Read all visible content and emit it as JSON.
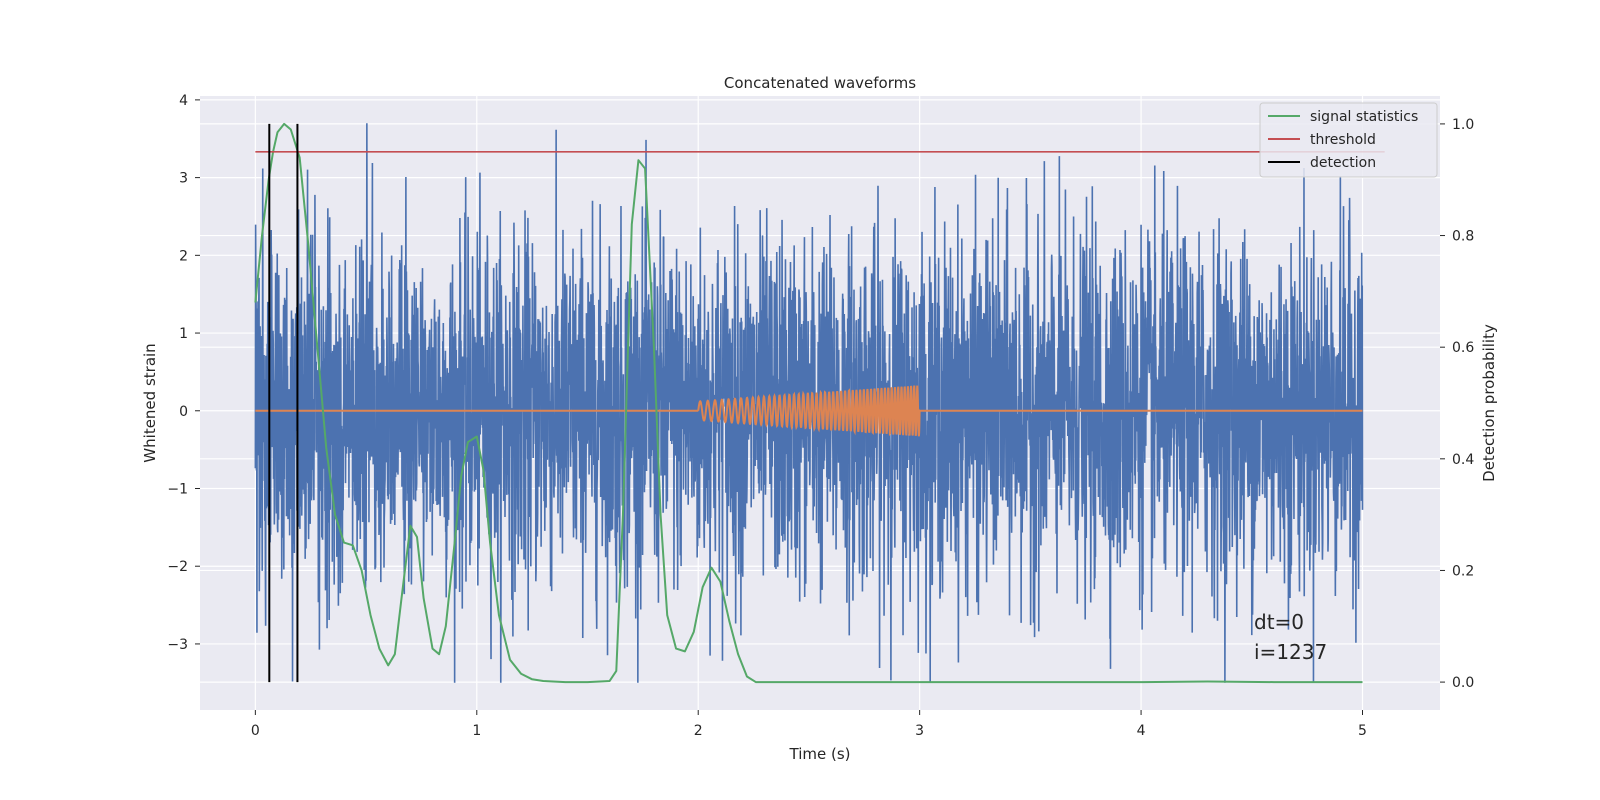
{
  "chart_data": {
    "type": "line",
    "title": "Concatenated waveforms",
    "xlabel": "Time (s)",
    "ylabel": "Whitened strain",
    "y2label": "Detection probability",
    "xlim": [
      -0.25,
      5.35
    ],
    "ylim": [
      -3.85,
      4.05
    ],
    "y2lim": [
      -0.05,
      1.05
    ],
    "xticks": [
      0,
      1,
      2,
      3,
      4,
      5
    ],
    "yticks": [
      -3,
      -2,
      -1,
      0,
      1,
      2,
      3,
      4
    ],
    "y2ticks": [
      0.0,
      0.2,
      0.4,
      0.6,
      0.8,
      1.0
    ],
    "xtick_labels": [
      "0",
      "1",
      "2",
      "3",
      "4",
      "5"
    ],
    "ytick_labels": [
      "−3",
      "−2",
      "−1",
      "0",
      "1",
      "2",
      "3",
      "4"
    ],
    "y2tick_labels": [
      "0.0",
      "0.2",
      "0.4",
      "0.6",
      "0.8",
      "1.0"
    ],
    "grid": true,
    "legend_position": "top-right",
    "legend": [
      "signal statistics",
      "threshold",
      "detection"
    ],
    "colors": {
      "strain": "#4c72b0",
      "template": "#dd8452",
      "signal_statistics": "#55a868",
      "threshold": "#c44e52",
      "detection": "#000000",
      "background": "#eaeaf2",
      "grid": "#ffffff"
    },
    "series": [
      {
        "description_key": "whitened_strain",
        "axis": "left",
        "x_range": [
          0,
          5
        ],
        "amplitude_approx": 2.3,
        "peak_max": 3.7,
        "peak_min": -3.5
      },
      {
        "description_key": "template",
        "axis": "left",
        "chirp_start": 2.0,
        "chirp_end": 3.0,
        "amplitude_start": 0.12,
        "amplitude_end": 0.33,
        "baseline": 0,
        "x_range": [
          0,
          5
        ]
      },
      {
        "name": "signal statistics",
        "axis": "right",
        "x": [
          0.0,
          0.03,
          0.06,
          0.08,
          0.1,
          0.13,
          0.16,
          0.2,
          0.24,
          0.28,
          0.32,
          0.36,
          0.4,
          0.44,
          0.48,
          0.52,
          0.56,
          0.6,
          0.63,
          0.66,
          0.7,
          0.73,
          0.76,
          0.8,
          0.83,
          0.86,
          0.9,
          0.93,
          0.96,
          1.0,
          1.03,
          1.06,
          1.1,
          1.15,
          1.2,
          1.25,
          1.3,
          1.4,
          1.5,
          1.6,
          1.63,
          1.66,
          1.7,
          1.73,
          1.76,
          1.8,
          1.83,
          1.86,
          1.9,
          1.94,
          1.98,
          2.02,
          2.06,
          2.1,
          2.14,
          2.18,
          2.22,
          2.26,
          2.3,
          2.5,
          3.0,
          3.5,
          4.0,
          4.3,
          4.6,
          5.0
        ],
        "y": [
          0.68,
          0.8,
          0.9,
          0.95,
          0.985,
          1.0,
          0.99,
          0.94,
          0.78,
          0.6,
          0.42,
          0.3,
          0.25,
          0.245,
          0.2,
          0.12,
          0.06,
          0.03,
          0.05,
          0.15,
          0.28,
          0.26,
          0.15,
          0.06,
          0.05,
          0.1,
          0.25,
          0.37,
          0.43,
          0.44,
          0.38,
          0.25,
          0.12,
          0.04,
          0.015,
          0.005,
          0.002,
          0.0,
          0.0,
          0.002,
          0.02,
          0.3,
          0.82,
          0.935,
          0.92,
          0.6,
          0.3,
          0.12,
          0.06,
          0.055,
          0.09,
          0.17,
          0.205,
          0.18,
          0.11,
          0.05,
          0.01,
          0.0,
          0.0,
          0.0,
          0.0,
          0.0,
          0.0,
          0.001,
          0.0,
          0.0
        ]
      },
      {
        "name": "threshold",
        "axis": "right",
        "x": [
          0,
          5.1
        ],
        "y": [
          0.95,
          0.95
        ]
      },
      {
        "name": "detection",
        "axis": "right",
        "type": "vlines",
        "x": [
          0.063,
          0.19
        ],
        "ymin": 0.0,
        "ymax": 1.0
      }
    ],
    "annotations": [
      {
        "text": "dt=0",
        "x": 4.5,
        "y": -2.75
      },
      {
        "text": "i=1237",
        "x": 4.5,
        "y": -3.15
      }
    ]
  }
}
